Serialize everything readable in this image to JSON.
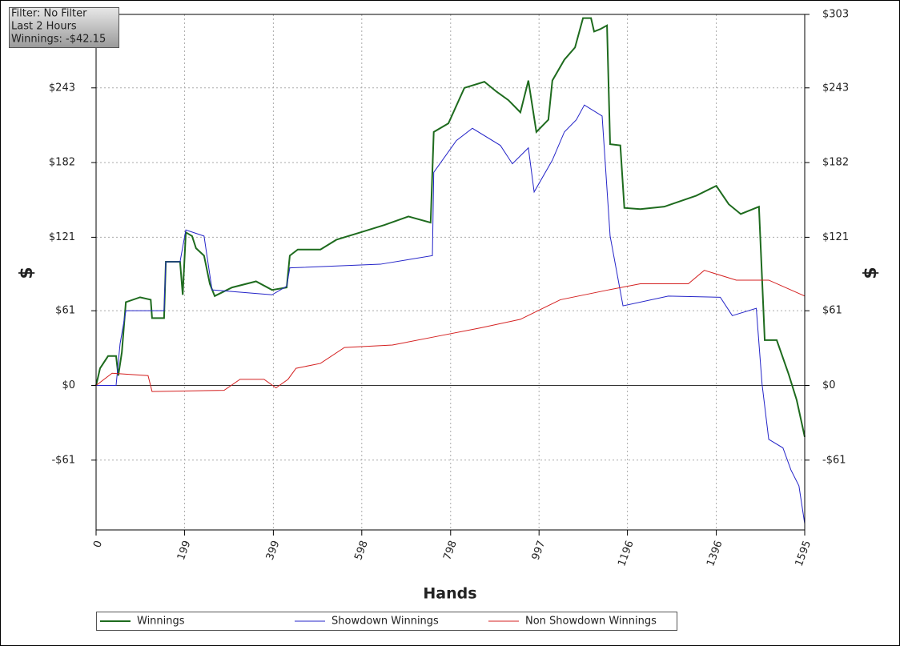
{
  "chart_data": {
    "type": "line",
    "info": [
      "Filter: No Filter",
      "Last 2 Hours",
      "Winnings: -$42.15"
    ],
    "xlabel": "Hands",
    "ylabel": "$",
    "y2label": "$",
    "xlim": [
      0,
      1595
    ],
    "xticks": [
      0,
      199,
      399,
      598,
      798,
      997,
      1196,
      1396,
      1595
    ],
    "ylim": [
      -118,
      303
    ],
    "yticks": [
      {
        "value": 303,
        "label": "$303"
      },
      {
        "value": 243,
        "label": "$243"
      },
      {
        "value": 182,
        "label": "$182"
      },
      {
        "value": 121,
        "label": "$121"
      },
      {
        "value": 61,
        "label": "$61"
      },
      {
        "value": 0,
        "label": "$0"
      },
      {
        "value": -61,
        "label": "-$61"
      }
    ],
    "grid": true,
    "series": [
      {
        "name": "Winnings",
        "color": "#1e6b1e",
        "x": [
          0,
          9,
          27,
          45,
          50,
          58,
          67,
          99,
          123,
          126,
          153,
          157,
          189,
          195,
          202,
          216,
          225,
          243,
          256,
          267,
          306,
          360,
          396,
          429,
          436,
          454,
          505,
          541,
          595,
          649,
          703,
          753,
          760,
          793,
          829,
          874,
          901,
          928,
          955,
          973,
          991,
          1018,
          1027,
          1054,
          1078,
          1096,
          1114,
          1121,
          1135,
          1150,
          1157,
          1180,
          1189,
          1225,
          1279,
          1351,
          1396,
          1424,
          1451,
          1492,
          1505,
          1532,
          1559,
          1577,
          1595
        ],
        "values": [
          0,
          14,
          24,
          24,
          8,
          27,
          68,
          72,
          70,
          55,
          55,
          101,
          101,
          74,
          125,
          122,
          112,
          106,
          83,
          73,
          80,
          85,
          78,
          80,
          106,
          111,
          111,
          119,
          125,
          131,
          138,
          133,
          207,
          214,
          243,
          248,
          240,
          233,
          223,
          249,
          207,
          217,
          249,
          266,
          276,
          300,
          300,
          289,
          291,
          294,
          197,
          196,
          145,
          144,
          146,
          155,
          163,
          148,
          140,
          146,
          37,
          37,
          9,
          -12,
          -42
        ]
      },
      {
        "name": "Showdown Winnings",
        "color": "#2424c8",
        "x": [
          0,
          45,
          54,
          67,
          153,
          157,
          189,
          202,
          243,
          261,
          396,
          429,
          436,
          640,
          757,
          760,
          811,
          847,
          910,
          937,
          973,
          986,
          1027,
          1054,
          1081,
          1099,
          1139,
          1157,
          1186,
          1288,
          1405,
          1432,
          1486,
          1499,
          1514,
          1546,
          1564,
          1582,
          1595
        ],
        "values": [
          0,
          0,
          34,
          61,
          61,
          101,
          101,
          127,
          122,
          78,
          74,
          81,
          96,
          99,
          106,
          174,
          200,
          210,
          196,
          181,
          194,
          158,
          184,
          207,
          217,
          229,
          220,
          122,
          65,
          73,
          72,
          57,
          63,
          1,
          -44,
          -51,
          -69,
          -82,
          -113
        ]
      },
      {
        "name": "Non Showdown Winnings",
        "color": "#d42020",
        "x": [
          0,
          36,
          117,
          126,
          288,
          324,
          378,
          405,
          432,
          450,
          505,
          559,
          667,
          766,
          865,
          955,
          1045,
          1153,
          1225,
          1333,
          1369,
          1441,
          1514,
          1595
        ],
        "values": [
          0,
          10,
          8,
          -5,
          -4,
          5,
          5,
          -2,
          5,
          14,
          18,
          31,
          33,
          40,
          47,
          54,
          70,
          78,
          83,
          83,
          94,
          86,
          86,
          73
        ]
      }
    ]
  }
}
